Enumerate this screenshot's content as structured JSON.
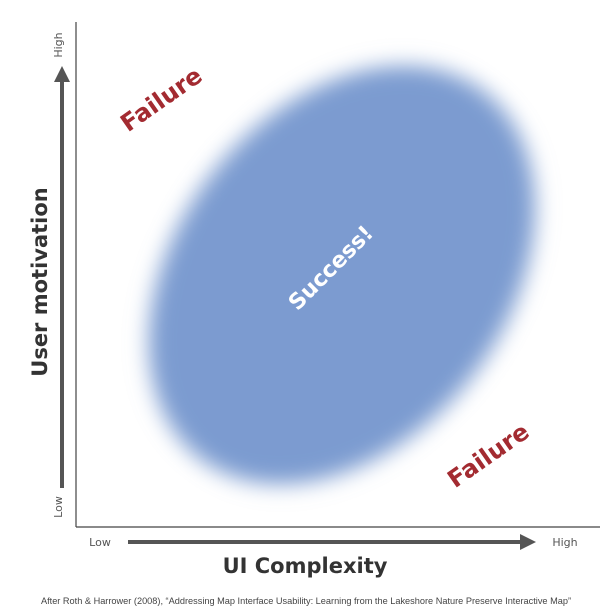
{
  "x_axis": {
    "title": "UI Complexity",
    "low_label": "Low",
    "high_label": "High"
  },
  "y_axis": {
    "title": "User motivation",
    "low_label": "Low",
    "high_label": "High"
  },
  "regions": {
    "failure_top_left": "Failure",
    "failure_bottom_right": "Failure",
    "success_center": "Success!"
  },
  "colors": {
    "success_blob": "#7b9bd0",
    "failure_text": "#a32b31",
    "axis_line": "#555555",
    "frame": "#444444"
  },
  "citation": "After Roth & Harrower (2008), “Addressing Map Interface Usability: Learning from the Lakeshore Nature Preserve Interactive Map”"
}
